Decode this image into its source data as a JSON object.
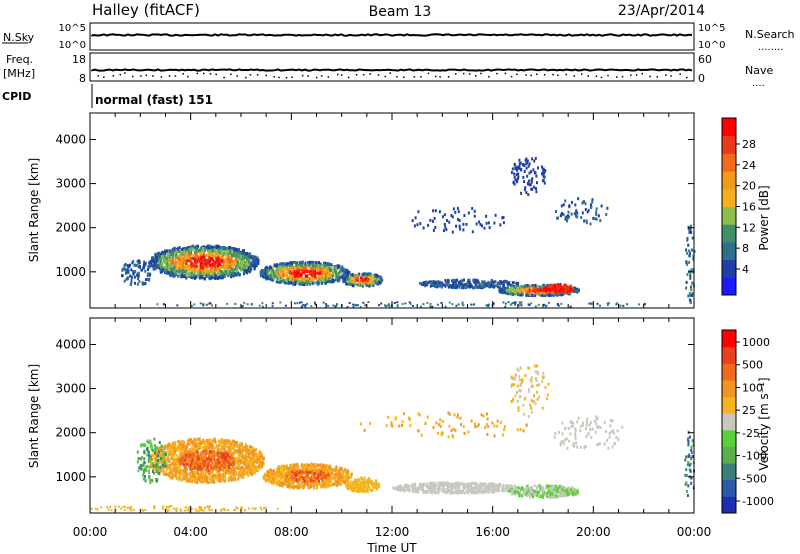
{
  "header": {
    "station": "Halley (fitACF)",
    "beam": "Beam 13",
    "date": "23/Apr/2014"
  },
  "top_panels": {
    "nsky_label": "N.Sky",
    "nsearch_label": "N.Search",
    "nsearch_dots": "........",
    "log_top": "10^5",
    "log_bottom": "10^0",
    "freq_label": "Freq.",
    "freq_unit": "[MHz]",
    "freq_ticks": [
      "18",
      "8"
    ],
    "nave_label": "Nave",
    "nave_dots": "....",
    "nave_ticks": [
      "60",
      "0"
    ],
    "cpid_label": "CPID",
    "cpid_value": "normal (fast) 151"
  },
  "colors": {
    "power": [
      "#1a1aff",
      "#1f3fa8",
      "#2e6e8e",
      "#3f8f6a",
      "#8fbf4a",
      "#f3b01a",
      "#f39a1a",
      "#f26b1a",
      "#e83a1a",
      "#ff0000"
    ],
    "velocity": [
      "#1c2fb0",
      "#2a5aa8",
      "#3a7f7a",
      "#5aaf4a",
      "#5ad03a",
      "#c8c8c0",
      "#f5b31c",
      "#f39322",
      "#f2691c",
      "#e8421c",
      "#ff0000"
    ]
  },
  "chart_data": [
    {
      "type": "heatmap",
      "name": "power",
      "ylabel": "Slant Range [km]",
      "xlabel": "Time UT",
      "x_ticks": [
        "00:00",
        "04:00",
        "08:00",
        "12:00",
        "16:00",
        "20:00",
        "00:00"
      ],
      "y_ticks": [
        1000,
        2000,
        3000,
        4000
      ],
      "ylim": [
        180,
        4600
      ],
      "xlim_hours": [
        0,
        24
      ],
      "colorbar_label": "Power [dB]",
      "colorbar_ticks": [
        "28",
        "24",
        "20",
        "16",
        "12",
        "8",
        "4"
      ],
      "colorbar_range": [
        0,
        30
      ]
    },
    {
      "type": "heatmap",
      "name": "velocity",
      "ylabel": "Slant Range [km]",
      "xlabel": "Time UT",
      "x_ticks": [
        "00:00",
        "04:00",
        "08:00",
        "12:00",
        "16:00",
        "20:00",
        "00:00"
      ],
      "y_ticks": [
        1000,
        2000,
        3000,
        4000
      ],
      "ylim": [
        180,
        4600
      ],
      "xlim_hours": [
        0,
        24
      ],
      "colorbar_label": "Velocity [m s⁻¹]",
      "colorbar_ticks": [
        "1000",
        "500",
        "100",
        "25",
        "-25",
        "-100",
        "-500",
        "-1000"
      ]
    }
  ],
  "x_axis_title": "Time UT",
  "x_ticks": [
    "00:00",
    "04:00",
    "08:00",
    "12:00",
    "16:00",
    "20:00",
    "00:00"
  ]
}
